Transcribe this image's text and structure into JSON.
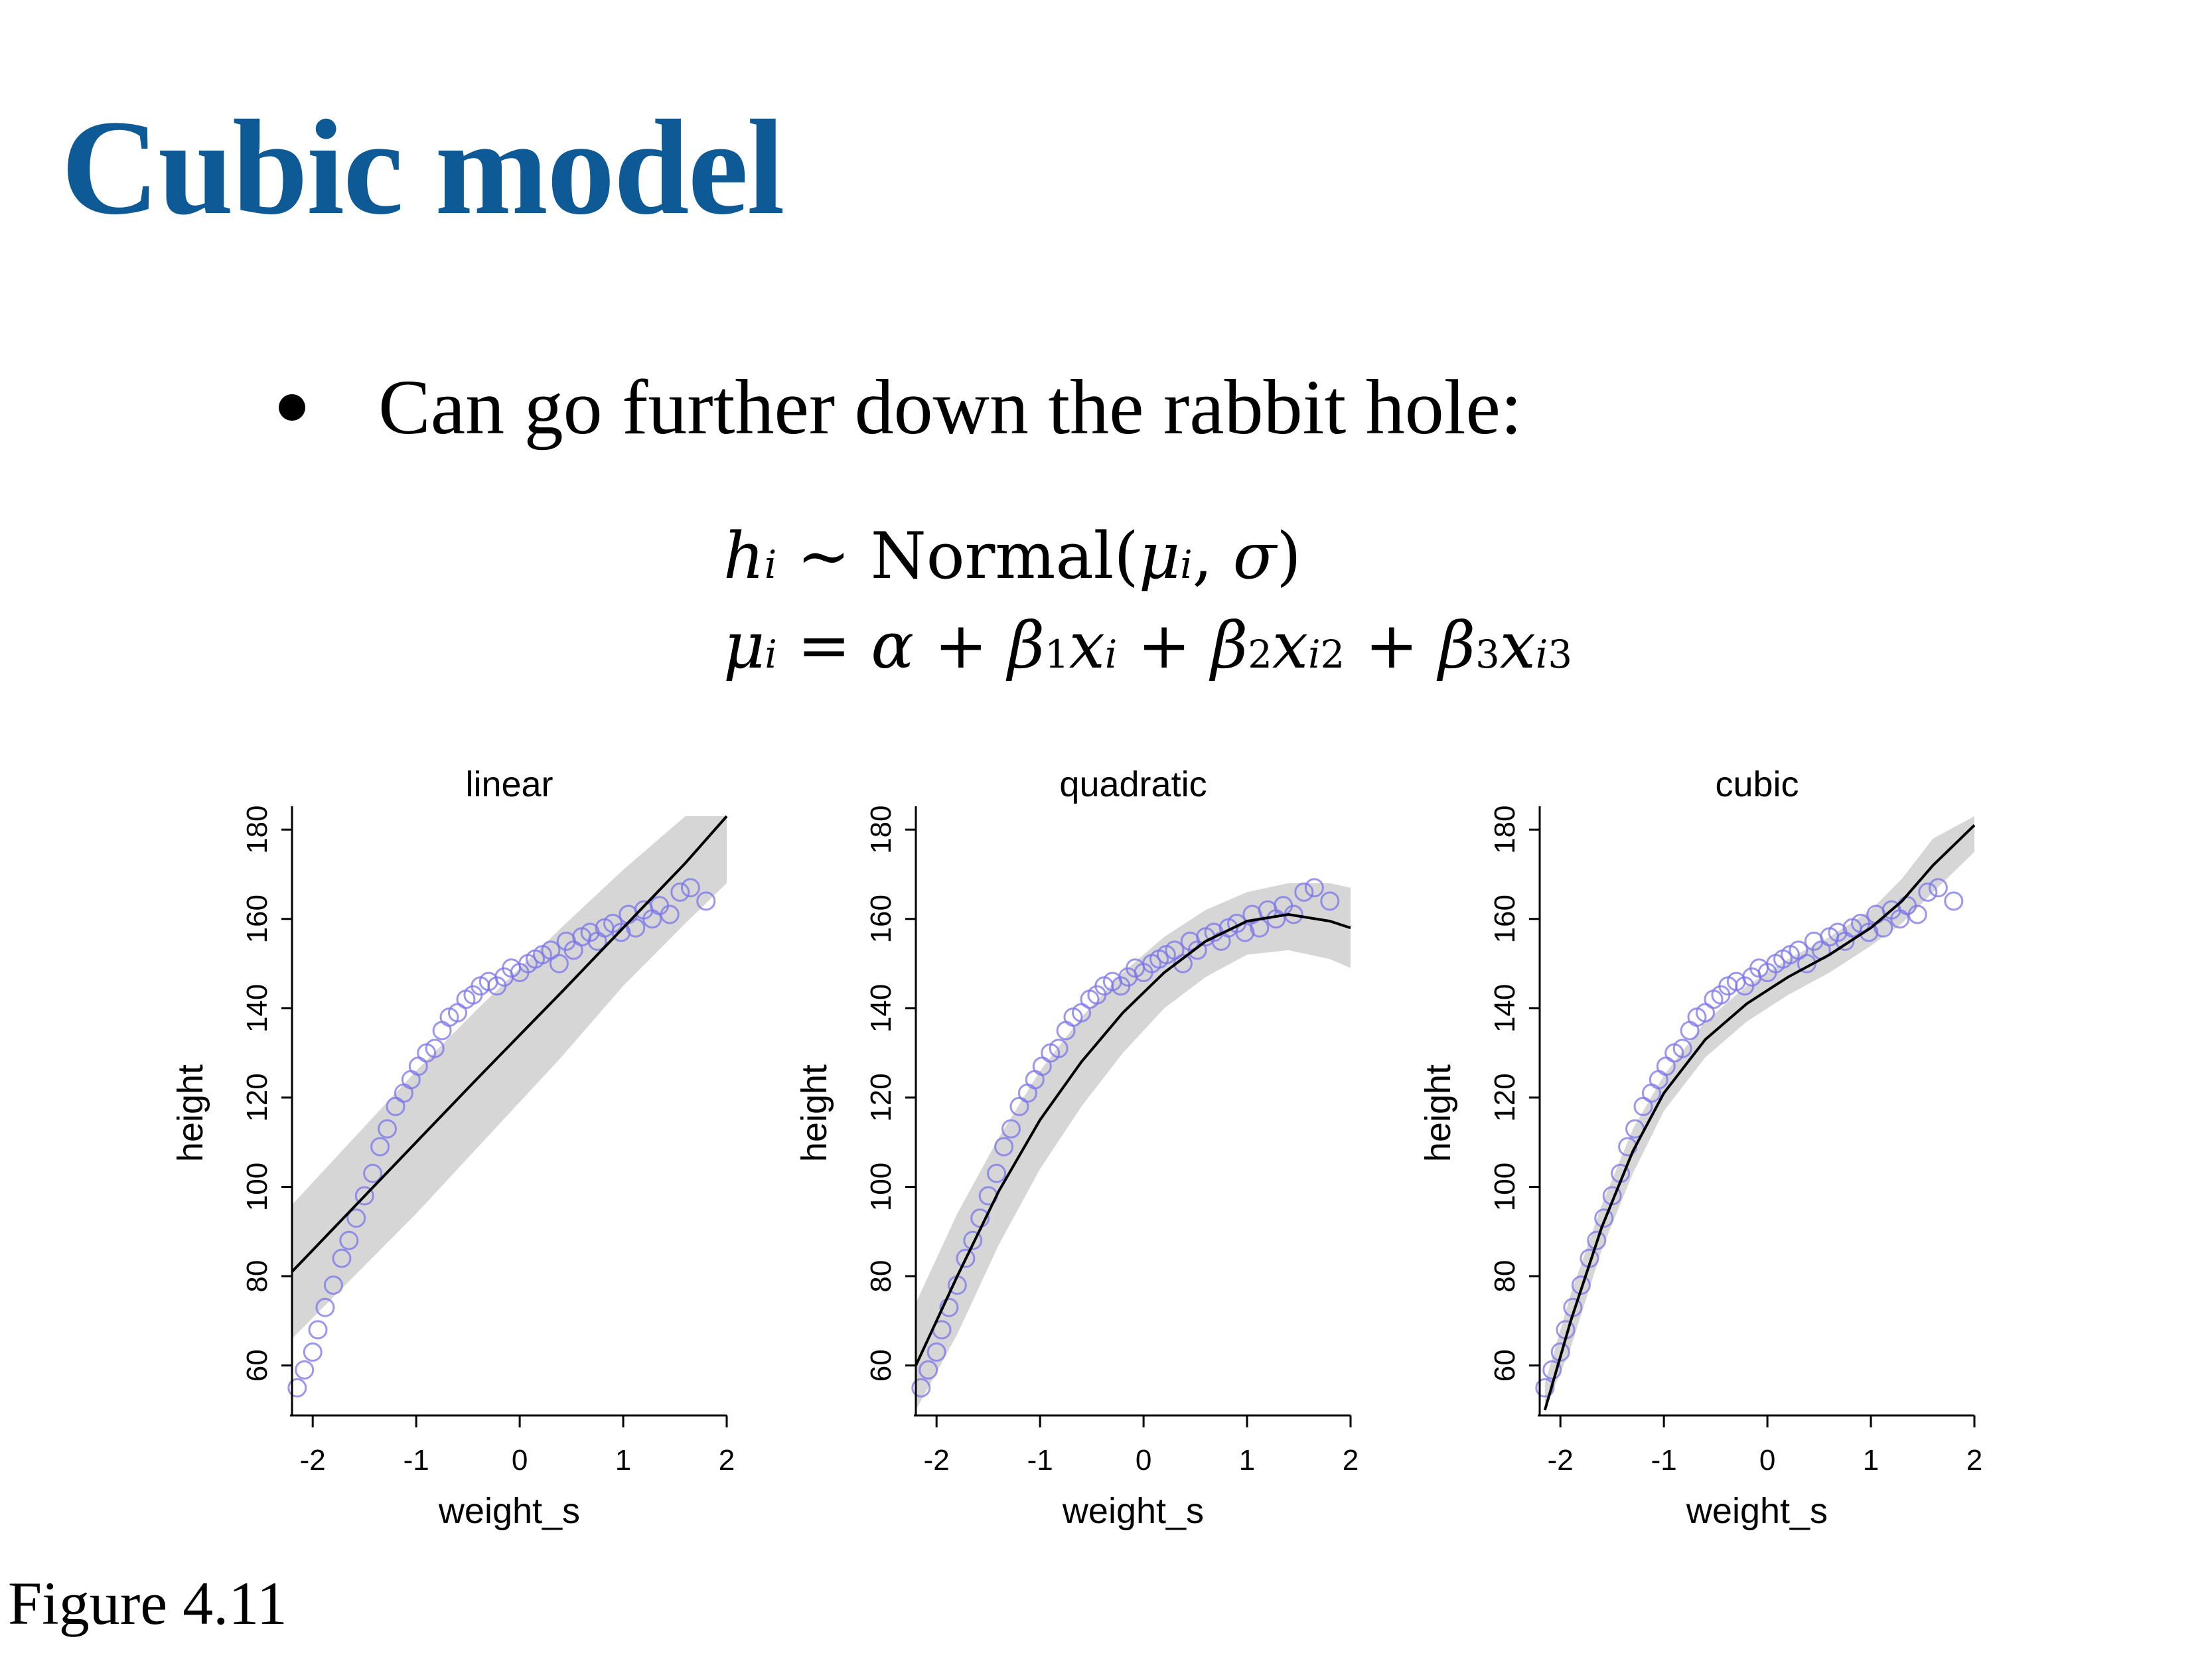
{
  "slide": {
    "title": "Cubic model",
    "bullet": "Can go further down the rabbit hole:",
    "figure_caption": "Figure 4.11",
    "colors": {
      "title": "#0e5a96",
      "points": "#7b74e8",
      "band": "#d6d6d6",
      "line": "#000000"
    }
  },
  "equations": {
    "eq1": {
      "lhs_var": "h",
      "lhs_sub": "i",
      "rel": "∼",
      "func": "Normal",
      "open": "(",
      "mu": "μ",
      "mu_sub": "i",
      "comma": ",",
      "sigma": "σ",
      "close": ")"
    },
    "eq2": {
      "lhs_var": "μ",
      "lhs_sub": "i",
      "rel": "=",
      "alpha": "α",
      "plus": "+",
      "b1": "β",
      "b1_sub": "1",
      "x1": "x",
      "x1_sub": "i",
      "b2": "β",
      "b2_sub": "2",
      "x2": "x",
      "x2_sub": "i",
      "x2_sup": "2",
      "b3": "β",
      "b3_sub": "3",
      "x3": "x",
      "x3_sub": "i",
      "x3_sup": "3"
    }
  },
  "chart_data": [
    {
      "type": "scatter",
      "title": "linear",
      "xlabel": "weight_s",
      "ylabel": "height",
      "xlim": [
        -2.2,
        2.0
      ],
      "ylim": [
        50,
        183
      ],
      "xticks": [
        -2,
        -1,
        0,
        1,
        2
      ],
      "xtick_labels": [
        "-2",
        "-1",
        "0",
        "1",
        "2"
      ],
      "yticks": [
        60,
        80,
        100,
        120,
        140,
        160,
        180
      ],
      "ytick_labels": [
        "60",
        "80",
        "100",
        "120",
        "140",
        "160",
        "180"
      ],
      "fit_line": {
        "x": [
          -2.2,
          -1.6,
          -1.0,
          -0.4,
          0.0,
          0.4,
          1.0,
          1.6,
          2.0
        ],
        "y": [
          81,
          95.5,
          110,
          124.5,
          134,
          143.5,
          158,
          172.5,
          183
        ]
      },
      "band": {
        "x": [
          -2.2,
          -1.6,
          -1.0,
          -0.4,
          0.0,
          0.4,
          1.0,
          1.6,
          2.0
        ],
        "upper": [
          96,
          111,
          126,
          140,
          149,
          158,
          171,
          183,
          183
        ],
        "lower": [
          66,
          80,
          94,
          109,
          119,
          129,
          145,
          159,
          168
        ]
      },
      "points_sample": {
        "x": [
          -2.15,
          -2.08,
          -2.0,
          -1.95,
          -1.88,
          -1.8,
          -1.72,
          -1.65,
          -1.58,
          -1.5,
          -1.42,
          -1.35,
          -1.28,
          -1.2,
          -1.12,
          -1.05,
          -0.98,
          -0.9,
          -0.82,
          -0.75,
          -0.68,
          -0.6,
          -0.52,
          -0.45,
          -0.38,
          -0.3,
          -0.22,
          -0.15,
          -0.08,
          0.0,
          0.08,
          0.15,
          0.22,
          0.3,
          0.38,
          0.45,
          0.52,
          0.6,
          0.68,
          0.75,
          0.82,
          0.9,
          0.98,
          1.05,
          1.12,
          1.2,
          1.28,
          1.35,
          1.45,
          1.55,
          1.65,
          1.8
        ],
        "y": [
          55,
          59,
          63,
          68,
          73,
          78,
          84,
          88,
          93,
          98,
          103,
          109,
          113,
          118,
          121,
          124,
          127,
          130,
          131,
          135,
          138,
          139,
          142,
          143,
          145,
          146,
          145,
          147,
          149,
          148,
          150,
          151,
          152,
          153,
          150,
          155,
          153,
          156,
          157,
          155,
          158,
          159,
          157,
          161,
          158,
          162,
          160,
          163,
          161,
          166,
          167,
          164
        ]
      }
    },
    {
      "type": "scatter",
      "title": "quadratic",
      "xlabel": "weight_s",
      "ylabel": "height",
      "xlim": [
        -2.2,
        2.0
      ],
      "ylim": [
        50,
        183
      ],
      "xticks": [
        -2,
        -1,
        0,
        1,
        2
      ],
      "xtick_labels": [
        "-2",
        "-1",
        "0",
        "1",
        "2"
      ],
      "yticks": [
        60,
        80,
        100,
        120,
        140,
        160,
        180
      ],
      "ytick_labels": [
        "60",
        "80",
        "100",
        "120",
        "140",
        "160",
        "180"
      ],
      "fit_line": {
        "x": [
          -2.2,
          -1.8,
          -1.4,
          -1.0,
          -0.6,
          -0.2,
          0.2,
          0.6,
          1.0,
          1.4,
          1.8,
          2.0
        ],
        "y": [
          60,
          80,
          99,
          115,
          128,
          139,
          148,
          155,
          159.5,
          161,
          159.5,
          158
        ]
      },
      "band": {
        "x": [
          -2.2,
          -1.8,
          -1.4,
          -1.0,
          -0.6,
          -0.2,
          0.2,
          0.6,
          1.0,
          1.4,
          1.8,
          2.0
        ],
        "upper": [
          74,
          94,
          111,
          126,
          138,
          148,
          156,
          162,
          166,
          168,
          168,
          167
        ],
        "lower": [
          48,
          67,
          87,
          104,
          118,
          130,
          140,
          147,
          152,
          153,
          151,
          149
        ]
      },
      "points_sample": {
        "x": [
          -2.15,
          -2.08,
          -2.0,
          -1.95,
          -1.88,
          -1.8,
          -1.72,
          -1.65,
          -1.58,
          -1.5,
          -1.42,
          -1.35,
          -1.28,
          -1.2,
          -1.12,
          -1.05,
          -0.98,
          -0.9,
          -0.82,
          -0.75,
          -0.68,
          -0.6,
          -0.52,
          -0.45,
          -0.38,
          -0.3,
          -0.22,
          -0.15,
          -0.08,
          0.0,
          0.08,
          0.15,
          0.22,
          0.3,
          0.38,
          0.45,
          0.52,
          0.6,
          0.68,
          0.75,
          0.82,
          0.9,
          0.98,
          1.05,
          1.12,
          1.2,
          1.28,
          1.35,
          1.45,
          1.55,
          1.65,
          1.8
        ],
        "y": [
          55,
          59,
          63,
          68,
          73,
          78,
          84,
          88,
          93,
          98,
          103,
          109,
          113,
          118,
          121,
          124,
          127,
          130,
          131,
          135,
          138,
          139,
          142,
          143,
          145,
          146,
          145,
          147,
          149,
          148,
          150,
          151,
          152,
          153,
          150,
          155,
          153,
          156,
          157,
          155,
          158,
          159,
          157,
          161,
          158,
          162,
          160,
          163,
          161,
          166,
          167,
          164
        ]
      }
    },
    {
      "type": "scatter",
      "title": "cubic",
      "xlabel": "weight_s",
      "ylabel": "height",
      "xlim": [
        -2.2,
        2.0
      ],
      "ylim": [
        50,
        183
      ],
      "xticks": [
        -2,
        -1,
        0,
        1,
        2
      ],
      "xtick_labels": [
        "-2",
        "-1",
        "0",
        "1",
        "2"
      ],
      "yticks": [
        60,
        80,
        100,
        120,
        140,
        160,
        180
      ],
      "ytick_labels": [
        "60",
        "80",
        "100",
        "120",
        "140",
        "160",
        "180"
      ],
      "fit_line": {
        "x": [
          -2.15,
          -1.9,
          -1.6,
          -1.3,
          -1.0,
          -0.6,
          -0.2,
          0.2,
          0.6,
          1.0,
          1.3,
          1.6,
          2.0
        ],
        "y": [
          50,
          70,
          91,
          108,
          121,
          133,
          141,
          147,
          152,
          158,
          164,
          172,
          181
        ]
      },
      "band": {
        "x": [
          -2.15,
          -1.9,
          -1.6,
          -1.3,
          -1.0,
          -0.6,
          -0.2,
          0.2,
          0.6,
          1.0,
          1.3,
          1.6,
          2.0
        ],
        "upper": [
          56,
          76,
          96,
          113,
          125,
          137,
          145,
          151,
          156,
          162,
          169,
          178,
          183
        ],
        "lower": [
          44,
          64,
          86,
          103,
          117,
          129,
          137,
          143,
          148,
          154,
          159,
          166,
          175
        ]
      },
      "points_sample": {
        "x": [
          -2.15,
          -2.08,
          -2.0,
          -1.95,
          -1.88,
          -1.8,
          -1.72,
          -1.65,
          -1.58,
          -1.5,
          -1.42,
          -1.35,
          -1.28,
          -1.2,
          -1.12,
          -1.05,
          -0.98,
          -0.9,
          -0.82,
          -0.75,
          -0.68,
          -0.6,
          -0.52,
          -0.45,
          -0.38,
          -0.3,
          -0.22,
          -0.15,
          -0.08,
          0.0,
          0.08,
          0.15,
          0.22,
          0.3,
          0.38,
          0.45,
          0.52,
          0.6,
          0.68,
          0.75,
          0.82,
          0.9,
          0.98,
          1.05,
          1.12,
          1.2,
          1.28,
          1.35,
          1.45,
          1.55,
          1.65,
          1.8
        ],
        "y": [
          55,
          59,
          63,
          68,
          73,
          78,
          84,
          88,
          93,
          98,
          103,
          109,
          113,
          118,
          121,
          124,
          127,
          130,
          131,
          135,
          138,
          139,
          142,
          143,
          145,
          146,
          145,
          147,
          149,
          148,
          150,
          151,
          152,
          153,
          150,
          155,
          153,
          156,
          157,
          155,
          158,
          159,
          157,
          161,
          158,
          162,
          160,
          163,
          161,
          166,
          167,
          164
        ]
      }
    }
  ]
}
